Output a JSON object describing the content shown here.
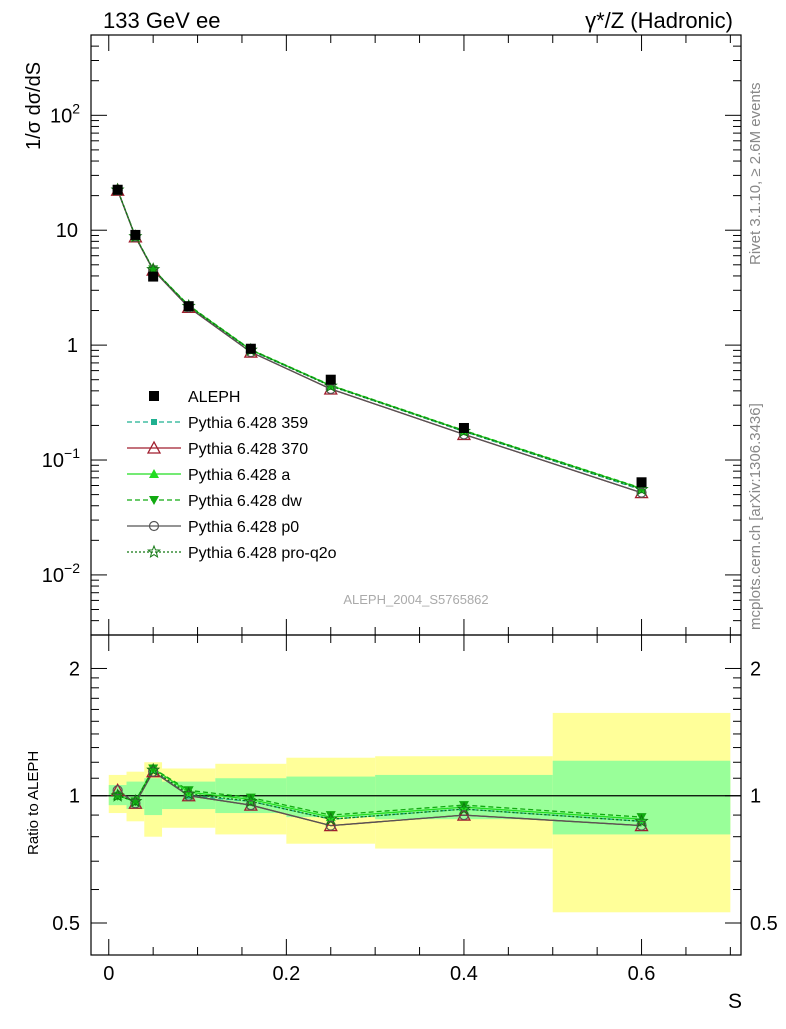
{
  "header": {
    "left": "133 GeV ee",
    "right": "γ*/Z (Hadronic)"
  },
  "side_text": {
    "rivet": "Rivet 3.1.10, ≥ 2.6M events",
    "mcplots": "mcplots.cern.ch [arXiv:1306.3436]"
  },
  "analysis_id": "ALEPH_2004_S5765862",
  "colors": {
    "data": "#000000",
    "p359": "#1fb090",
    "p370": "#a01e2e",
    "pa": "#22dd22",
    "pdw": "#11aa11",
    "pp0": "#555555",
    "pq2o": "#117711",
    "band_inner": "#99ff99",
    "band_outer": "#ffff99"
  },
  "chart_data": [
    {
      "type": "scatter",
      "panel": "main",
      "ylabel": "1/σ  dσ/dS",
      "yscale": "log",
      "ylim": [
        0.003,
        500
      ],
      "xlim": [
        -0.02,
        0.712
      ],
      "yticks": [
        {
          "value": 100,
          "base": "10",
          "exp": "2"
        },
        {
          "value": 10,
          "base": "10",
          "exp": ""
        },
        {
          "value": 1,
          "base": "1",
          "exp": ""
        },
        {
          "value": 0.1,
          "base": "10",
          "exp": "−1"
        },
        {
          "value": 0.01,
          "base": "10",
          "exp": "−2"
        }
      ],
      "x": [
        0.01,
        0.03,
        0.05,
        0.09,
        0.16,
        0.25,
        0.4,
        0.6
      ],
      "series": [
        {
          "key": "data",
          "name": "ALEPH",
          "values": [
            22.5,
            9.1,
            3.95,
            2.18,
            0.93,
            0.5,
            0.19,
            0.064
          ]
        },
        {
          "key": "p359",
          "name": "Pythia 6.428 359",
          "values": [
            22.4,
            8.8,
            4.55,
            2.17,
            0.9,
            0.44,
            0.177,
            0.055
          ]
        },
        {
          "key": "p370",
          "name": "Pythia 6.428 370",
          "values": [
            22.3,
            8.75,
            4.5,
            2.13,
            0.87,
            0.415,
            0.167,
            0.052
          ]
        },
        {
          "key": "pa",
          "name": "Pythia 6.428 a",
          "values": [
            22.4,
            8.8,
            4.55,
            2.2,
            0.91,
            0.445,
            0.18,
            0.0565
          ]
        },
        {
          "key": "pdw",
          "name": "Pythia 6.428 dw",
          "values": [
            22.5,
            8.85,
            4.56,
            2.22,
            0.915,
            0.448,
            0.181,
            0.057
          ]
        },
        {
          "key": "pp0",
          "name": "Pythia 6.428 p0",
          "values": [
            22.3,
            8.75,
            4.5,
            2.13,
            0.87,
            0.415,
            0.167,
            0.052
          ]
        },
        {
          "key": "pq2o",
          "name": "Pythia 6.428 pro-q2o",
          "values": [
            22.4,
            8.8,
            4.55,
            2.18,
            0.905,
            0.44,
            0.178,
            0.0555
          ]
        }
      ]
    },
    {
      "type": "scatter",
      "panel": "ratio",
      "ylabel": "Ratio to ALEPH",
      "xlabel": "S",
      "yscale": "log",
      "ylim": [
        0.42,
        2.4
      ],
      "xlim": [
        -0.02,
        0.712
      ],
      "yticks": [
        {
          "value": 2,
          "label": "2"
        },
        {
          "value": 1,
          "label": "1"
        },
        {
          "value": 0.5,
          "label": "0.5"
        }
      ],
      "xticks": [
        {
          "value": 0,
          "label": "0"
        },
        {
          "value": 0.2,
          "label": "0.2"
        },
        {
          "value": 0.4,
          "label": "0.4"
        },
        {
          "value": 0.6,
          "label": "0.6"
        }
      ],
      "bands": [
        {
          "xlo": 0.0,
          "xhi": 0.02,
          "inner": [
            0.95,
            1.06
          ],
          "outer": [
            0.91,
            1.12
          ]
        },
        {
          "xlo": 0.02,
          "xhi": 0.04,
          "inner": [
            0.93,
            1.08
          ],
          "outer": [
            0.87,
            1.14
          ]
        },
        {
          "xlo": 0.04,
          "xhi": 0.06,
          "inner": [
            0.9,
            1.1
          ],
          "outer": [
            0.8,
            1.2
          ]
        },
        {
          "xlo": 0.06,
          "xhi": 0.12,
          "inner": [
            0.93,
            1.08
          ],
          "outer": [
            0.84,
            1.16
          ]
        },
        {
          "xlo": 0.12,
          "xhi": 0.2,
          "inner": [
            0.91,
            1.1
          ],
          "outer": [
            0.81,
            1.19
          ]
        },
        {
          "xlo": 0.2,
          "xhi": 0.3,
          "inner": [
            0.89,
            1.11
          ],
          "outer": [
            0.77,
            1.23
          ]
        },
        {
          "xlo": 0.3,
          "xhi": 0.5,
          "inner": [
            0.88,
            1.12
          ],
          "outer": [
            0.75,
            1.24
          ]
        },
        {
          "xlo": 0.5,
          "xhi": 0.7,
          "inner": [
            0.81,
            1.21
          ],
          "outer": [
            0.53,
            1.57
          ]
        }
      ],
      "x": [
        0.01,
        0.03,
        0.05,
        0.09,
        0.16,
        0.25,
        0.4,
        0.6
      ],
      "series": [
        {
          "key": "p359",
          "values": [
            1.0,
            0.97,
            1.15,
            1.0,
            0.97,
            0.88,
            0.93,
            0.87
          ]
        },
        {
          "key": "p370",
          "values": [
            1.03,
            0.96,
            1.14,
            1.0,
            0.95,
            0.85,
            0.9,
            0.85
          ]
        },
        {
          "key": "pa",
          "values": [
            1.0,
            0.97,
            1.16,
            1.02,
            0.98,
            0.89,
            0.94,
            0.88
          ]
        },
        {
          "key": "pdw",
          "values": [
            1.0,
            0.97,
            1.16,
            1.03,
            0.99,
            0.9,
            0.95,
            0.89
          ]
        },
        {
          "key": "pp0",
          "values": [
            1.03,
            0.96,
            1.14,
            1.0,
            0.95,
            0.85,
            0.9,
            0.85
          ]
        },
        {
          "key": "pq2o",
          "values": [
            1.0,
            0.97,
            1.15,
            1.01,
            0.97,
            0.88,
            0.93,
            0.87
          ]
        }
      ]
    }
  ]
}
